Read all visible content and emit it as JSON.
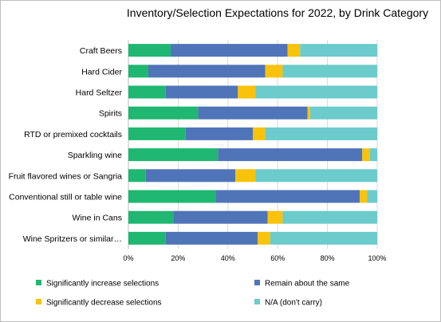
{
  "chart_data": {
    "type": "bar",
    "orientation": "horizontal",
    "stacked": "percent",
    "title": "Inventory/Selection Expectations for 2022, by Drink Category",
    "categories": [
      "Craft Beers",
      "Hard Cider",
      "Hard Seltzer",
      "Spirits",
      "RTD or premixed cocktails",
      "Sparkling wine",
      "Fruit flavored wines or Sangria",
      "Conventional still or table wine",
      "Wine in Cans",
      "Wine Spritzers or similar…"
    ],
    "series": [
      {
        "name": "Significantly increase selections",
        "color": "#1fb771",
        "values": [
          17,
          8,
          15,
          28,
          23,
          36,
          7,
          35,
          18,
          15
        ]
      },
      {
        "name": "Remain about the same",
        "color": "#4f74b8",
        "values": [
          47,
          47,
          29,
          44,
          27,
          58,
          36,
          58,
          38,
          37
        ]
      },
      {
        "name": "Significantly decrease selections",
        "color": "#f9c20b",
        "values": [
          5,
          7,
          7,
          1,
          5,
          3,
          8,
          3,
          6,
          5
        ]
      },
      {
        "name": "N/A (don't carry)",
        "color": "#6ccbcb",
        "values": [
          31,
          38,
          49,
          27,
          45,
          3,
          49,
          4,
          38,
          43
        ]
      }
    ],
    "xlim": [
      0,
      100
    ],
    "xticks": [
      "0%",
      "20%",
      "40%",
      "60%",
      "80%",
      "100%"
    ],
    "grid": true,
    "legend_position": "bottom"
  }
}
